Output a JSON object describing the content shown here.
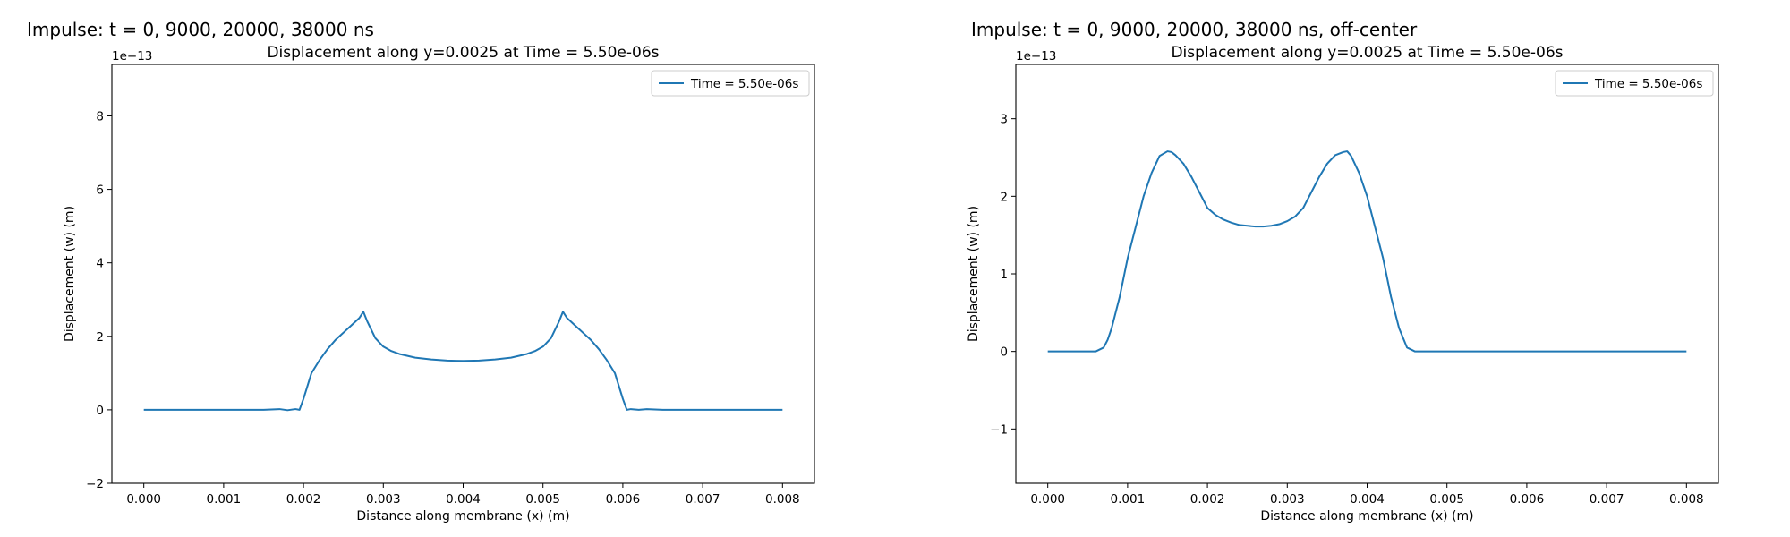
{
  "panels": [
    {
      "suptitle": "Impulse: t = 0, 9000, 20000, 38000 ns",
      "chart_data": {
        "type": "line",
        "title": "Displacement along y=0.0025 at Time = 5.50e-06s",
        "xlabel": "Distance along membrane (x) (m)",
        "ylabel": "Displacement (w) (m)",
        "offset_text": "1e−13",
        "xlim": [
          -0.0004,
          0.0084
        ],
        "ylim": [
          -2,
          9.4
        ],
        "xticks": [
          0.0,
          0.001,
          0.002,
          0.003,
          0.004,
          0.005,
          0.006,
          0.007,
          0.008
        ],
        "xtick_labels": [
          "0.000",
          "0.001",
          "0.002",
          "0.003",
          "0.004",
          "0.005",
          "0.006",
          "0.007",
          "0.008"
        ],
        "yticks": [
          -2,
          0,
          2,
          4,
          6,
          8
        ],
        "ytick_labels": [
          "−2",
          "0",
          "2",
          "4",
          "6",
          "8"
        ],
        "grid": false,
        "legend_position": "top-right",
        "series": [
          {
            "name": "Time = 5.50e-06s",
            "color": "#1f77b4",
            "x": [
              0.0,
              0.0005,
              0.001,
              0.0015,
              0.0017,
              0.0018,
              0.0019,
              0.00195,
              0.002,
              0.0021,
              0.0022,
              0.0023,
              0.0024,
              0.0025,
              0.0026,
              0.0027,
              0.00275,
              0.0028,
              0.0029,
              0.003,
              0.0031,
              0.0032,
              0.0034,
              0.0036,
              0.0038,
              0.004,
              0.0042,
              0.0044,
              0.0046,
              0.0048,
              0.0049,
              0.005,
              0.0051,
              0.0052,
              0.00525,
              0.0053,
              0.0054,
              0.0055,
              0.0056,
              0.0057,
              0.0058,
              0.0059,
              0.006,
              0.00605,
              0.0061,
              0.0062,
              0.0063,
              0.0065,
              0.007,
              0.0075,
              0.008
            ],
            "values": [
              0.0,
              0.0,
              0.0,
              0.0,
              0.02,
              -0.01,
              0.02,
              0.0,
              0.3,
              1.0,
              1.35,
              1.65,
              1.9,
              2.1,
              2.3,
              2.5,
              2.67,
              2.4,
              1.95,
              1.72,
              1.6,
              1.52,
              1.42,
              1.37,
              1.34,
              1.33,
              1.34,
              1.37,
              1.42,
              1.52,
              1.6,
              1.72,
              1.95,
              2.4,
              2.67,
              2.5,
              2.3,
              2.1,
              1.9,
              1.65,
              1.35,
              1.0,
              0.3,
              0.0,
              0.02,
              0.0,
              0.02,
              0.0,
              0.0,
              0.0,
              0.0
            ]
          }
        ]
      }
    },
    {
      "suptitle": "Impulse: t = 0, 9000, 20000, 38000 ns, off-center",
      "chart_data": {
        "type": "line",
        "title": "Displacement along y=0.0025 at Time = 5.50e-06s",
        "xlabel": "Distance along membrane (x) (m)",
        "ylabel": "Displacement (w) (m)",
        "offset_text": "1e−13",
        "xlim": [
          -0.0004,
          0.0084
        ],
        "ylim": [
          -1.7,
          3.7
        ],
        "xticks": [
          0.0,
          0.001,
          0.002,
          0.003,
          0.004,
          0.005,
          0.006,
          0.007,
          0.008
        ],
        "xtick_labels": [
          "0.000",
          "0.001",
          "0.002",
          "0.003",
          "0.004",
          "0.005",
          "0.006",
          "0.007",
          "0.008"
        ],
        "yticks": [
          -1,
          0,
          1,
          2,
          3
        ],
        "ytick_labels": [
          "−1",
          "0",
          "1",
          "2",
          "3"
        ],
        "grid": false,
        "legend_position": "top-right",
        "series": [
          {
            "name": "Time = 5.50e-06s",
            "color": "#1f77b4",
            "x": [
              0.0,
              0.0003,
              0.0006,
              0.0007,
              0.00075,
              0.0008,
              0.0009,
              0.001,
              0.0011,
              0.0012,
              0.0013,
              0.0014,
              0.0015,
              0.00155,
              0.0016,
              0.0017,
              0.0018,
              0.0019,
              0.002,
              0.0021,
              0.0022,
              0.0023,
              0.0024,
              0.0025,
              0.0026,
              0.0027,
              0.0028,
              0.0029,
              0.003,
              0.0031,
              0.0032,
              0.0033,
              0.0034,
              0.0035,
              0.0036,
              0.0037,
              0.00375,
              0.0038,
              0.0039,
              0.004,
              0.0041,
              0.0042,
              0.0043,
              0.0044,
              0.0045,
              0.0046,
              0.0047,
              0.0048,
              0.005,
              0.006,
              0.007,
              0.008
            ],
            "values": [
              0.0,
              0.0,
              0.0,
              0.05,
              0.15,
              0.3,
              0.7,
              1.2,
              1.6,
              2.0,
              2.3,
              2.52,
              2.58,
              2.57,
              2.53,
              2.42,
              2.25,
              2.05,
              1.85,
              1.76,
              1.7,
              1.66,
              1.63,
              1.62,
              1.61,
              1.61,
              1.62,
              1.64,
              1.68,
              1.74,
              1.85,
              2.05,
              2.25,
              2.42,
              2.53,
              2.57,
              2.58,
              2.52,
              2.3,
              2.0,
              1.6,
              1.2,
              0.7,
              0.3,
              0.05,
              0.0,
              0.0,
              0.0,
              0.0,
              0.0,
              0.0,
              0.0
            ]
          }
        ]
      }
    }
  ]
}
